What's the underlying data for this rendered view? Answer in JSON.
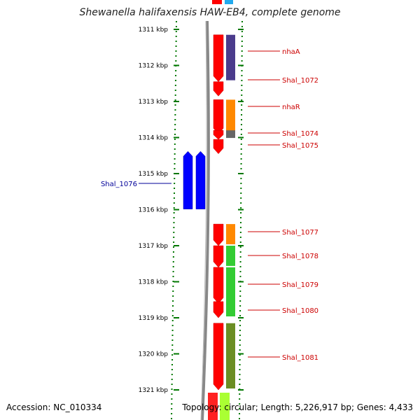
{
  "title": "Shewanella halifaxensis HAW-EB4, complete genome",
  "footer": {
    "accession": "Accession: NC_010334",
    "summary": "Topology: circular; Length: 5,226,917 bp; Genes: 4,433"
  },
  "axis": {
    "ticks": [
      {
        "label": "1311 kbp",
        "kbp": 1311
      },
      {
        "label": "1312 kbp",
        "kbp": 1312
      },
      {
        "label": "1313 kbp",
        "kbp": 1313
      },
      {
        "label": "1314 kbp",
        "kbp": 1314
      },
      {
        "label": "1315 kbp",
        "kbp": 1315
      },
      {
        "label": "1316 kbp",
        "kbp": 1316
      },
      {
        "label": "1317 kbp",
        "kbp": 1317
      },
      {
        "label": "1318 kbp",
        "kbp": 1318
      },
      {
        "label": "1319 kbp",
        "kbp": 1319
      },
      {
        "label": "1320 kbp",
        "kbp": 1320
      },
      {
        "label": "1321 kbp",
        "kbp": 1321
      }
    ]
  },
  "colors": {
    "forward_cds": "#ff0000",
    "reverse_cds": "#0000ff",
    "label_forward": "#cc0000",
    "label_reverse": "#000099",
    "tick_green": "#007700",
    "backbone": "#888888"
  },
  "forward_genes": [
    {
      "name": "nhaA",
      "start": 1311.15,
      "end": 1312.45,
      "cog_color": "#4b3b8c"
    },
    {
      "name": "Shal_1072",
      "start": 1312.45,
      "end": 1312.85,
      "cog_color": ""
    },
    {
      "name": "nhaR",
      "start": 1312.95,
      "end": 1313.9,
      "cog_color": "#ff8800"
    },
    {
      "name": "Shal_1074",
      "start": 1313.8,
      "end": 1314.05,
      "cog_color": "#666666"
    },
    {
      "name": "Shal_1075",
      "start": 1314.05,
      "end": 1314.45,
      "cog_color": ""
    },
    {
      "name": "Shal_1077",
      "start": 1316.4,
      "end": 1317.0,
      "cog_color": "#ff8800"
    },
    {
      "name": "Shal_1078",
      "start": 1317.0,
      "end": 1317.6,
      "cog_color": "#33cc33"
    },
    {
      "name": "Shal_1079",
      "start": 1317.6,
      "end": 1318.6,
      "cog_color": "#33cc33"
    },
    {
      "name": "Shal_1080",
      "start": 1318.55,
      "end": 1319.0,
      "cog_color": "#33cc33"
    },
    {
      "name": "Shal_1081",
      "start": 1319.15,
      "end": 1321.0,
      "cog_color": "#6b8e23"
    }
  ],
  "reverse_genes": [
    {
      "name": "Shal_1076",
      "start": 1314.5,
      "end": 1316.1,
      "label": "Shal_1076"
    },
    {
      "name": "",
      "start": 1314.5,
      "end": 1316.1,
      "label": ""
    }
  ]
}
